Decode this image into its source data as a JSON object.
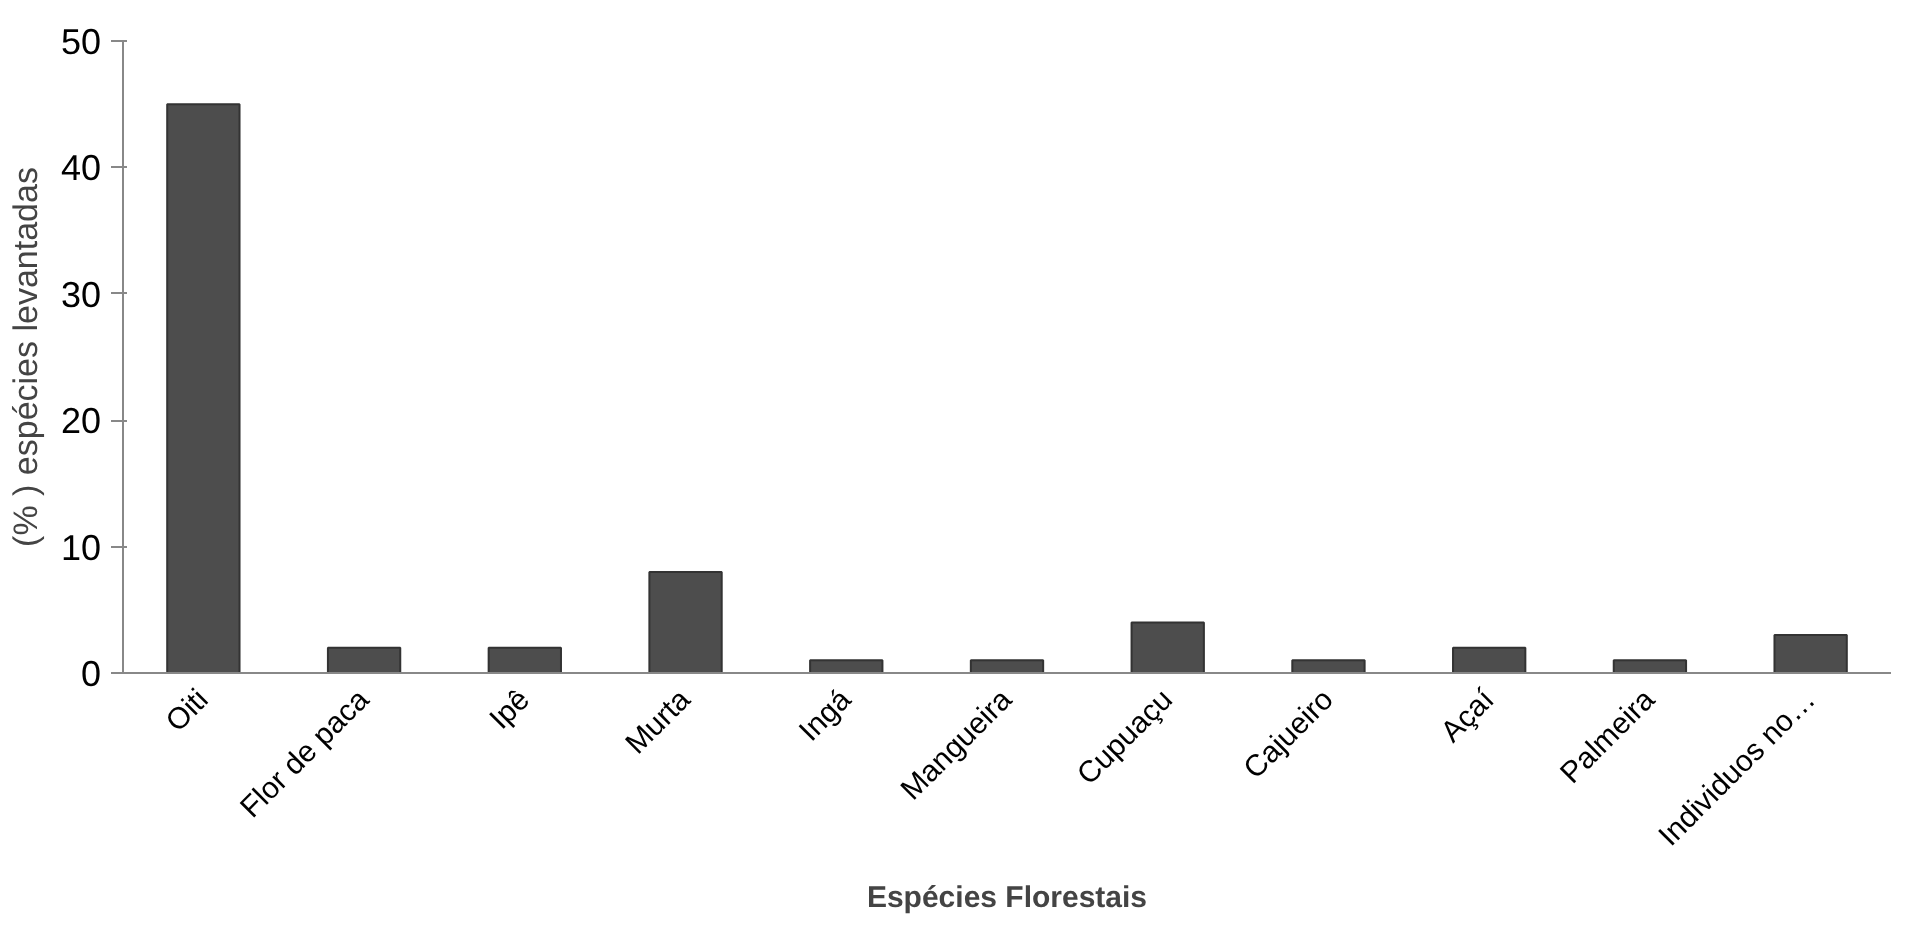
{
  "chart_data": {
    "type": "bar",
    "xlabel": "Espécies Florestais",
    "ylabel": "(% ) espécies levantadas",
    "categories": [
      "Oiti",
      "Flor de paca",
      "Ipê",
      "Murta",
      "Ingá",
      "Mangueira",
      "Cupuaçu",
      "Cajueiro",
      "Açaí",
      "Palmeira",
      "Individuos no…"
    ],
    "values": [
      45,
      2,
      2,
      8,
      1,
      1,
      4,
      1,
      2,
      1,
      3
    ],
    "color": "#4d4d4d",
    "ylim": [
      0,
      50
    ],
    "yticks": [
      0,
      10,
      20,
      30,
      40,
      50
    ],
    "grid": false
  }
}
